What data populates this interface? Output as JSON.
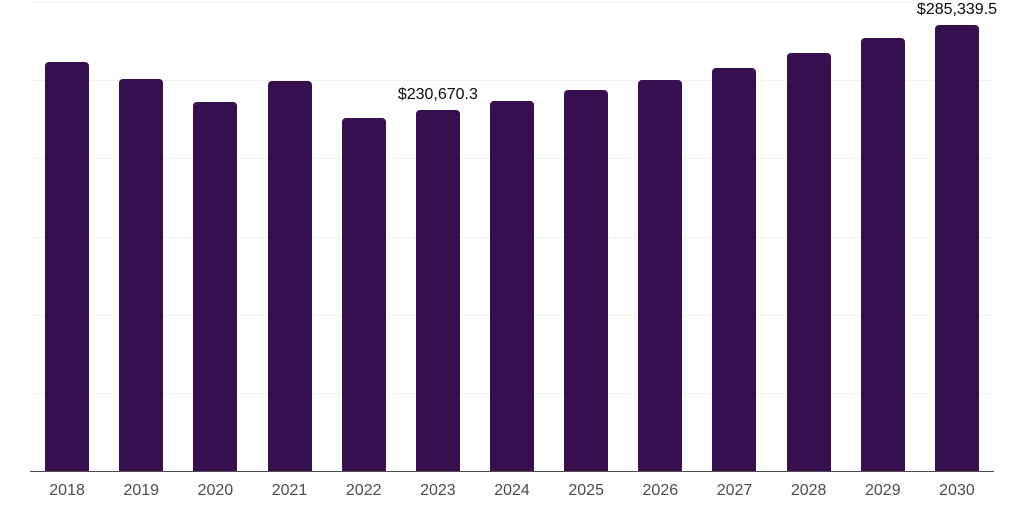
{
  "chart": {
    "background_color": "#ffffff",
    "bar_color": "#36104E",
    "gridline_color": "#f2f2f2",
    "axis_line_color": "#4d4d4d",
    "x_label_color": "#4d4d4d",
    "value_label_color": "#0a0a0a"
  },
  "chart_data": {
    "type": "bar",
    "title": "",
    "xlabel": "",
    "ylabel": "",
    "categories": [
      "2018",
      "2019",
      "2020",
      "2021",
      "2022",
      "2023",
      "2024",
      "2025",
      "2026",
      "2027",
      "2028",
      "2029",
      "2030"
    ],
    "values": [
      261600,
      250700,
      236000,
      249500,
      225800,
      230670.3,
      236700,
      243700,
      250100,
      257800,
      267400,
      277000,
      285339.5
    ],
    "data_labels": [
      {
        "category": "2023",
        "text": "$230,670.3"
      },
      {
        "category": "2030",
        "text": "$285,339.5"
      }
    ],
    "ylim": [
      0,
      300000
    ],
    "gridlines": {
      "orientation": "horizontal",
      "step": 50000,
      "visible": true
    },
    "y_tick_labels_visible": false,
    "legend": "none"
  }
}
